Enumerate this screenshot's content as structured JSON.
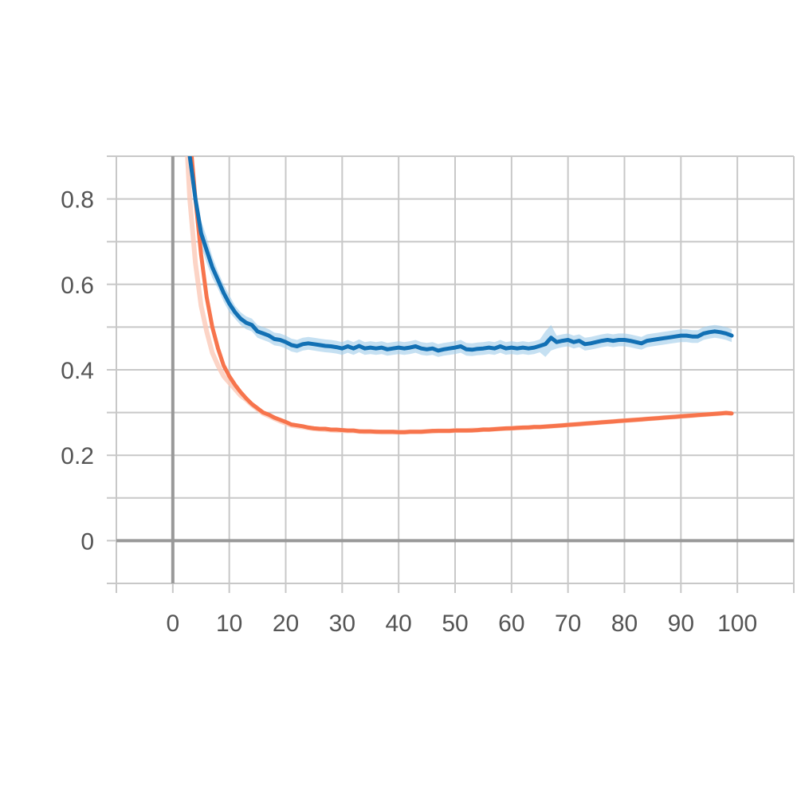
{
  "chart_data": {
    "type": "line",
    "title": "",
    "xlabel": "",
    "ylabel": "",
    "xlim": [
      -10,
      110
    ],
    "ylim": [
      -0.1,
      0.9
    ],
    "x_ticks": [
      0,
      10,
      20,
      30,
      40,
      50,
      60,
      70,
      80,
      90,
      100
    ],
    "x_tick_labels": [
      "0",
      "10",
      "20",
      "30",
      "40",
      "50",
      "60",
      "70",
      "80",
      "90",
      "100"
    ],
    "y_ticks": [
      0,
      0.2,
      0.4,
      0.6,
      0.8
    ],
    "y_tick_labels": [
      "0",
      "0.2",
      "0.4",
      "0.6",
      "0.8"
    ],
    "grid": true,
    "legend": "none",
    "colors": {
      "blue": "#1270B4",
      "blue_light": "#9FCBEA",
      "orange": "#F7744C",
      "orange_light": "#FBC9B8",
      "grid": "#C8C8C8",
      "axis": "#999999"
    },
    "series": [
      {
        "x": [
          2,
          3,
          4,
          5,
          6,
          7,
          8,
          9,
          10,
          11,
          12,
          13,
          14,
          15,
          16,
          17,
          18,
          19,
          20,
          21,
          22,
          23,
          24,
          25,
          26,
          27,
          28,
          29,
          30,
          31,
          32,
          33,
          34,
          35,
          36,
          37,
          38,
          39,
          40,
          41,
          42,
          43,
          44,
          45,
          46,
          47,
          48,
          49,
          50,
          51,
          52,
          53,
          54,
          55,
          56,
          57,
          58,
          59,
          60,
          61,
          62,
          63,
          64,
          65,
          66,
          67,
          68,
          69,
          70,
          71,
          72,
          73,
          74,
          75,
          76,
          77,
          78,
          79,
          80,
          81,
          82,
          83,
          84,
          85,
          86,
          87,
          88,
          89,
          90,
          91,
          92,
          93,
          94,
          95,
          96,
          97,
          98,
          99
        ],
        "y": [
          1.0,
          0.9,
          0.8,
          0.72,
          0.68,
          0.64,
          0.61,
          0.58,
          0.555,
          0.535,
          0.52,
          0.51,
          0.505,
          0.49,
          0.485,
          0.48,
          0.472,
          0.47,
          0.465,
          0.458,
          0.455,
          0.46,
          0.462,
          0.46,
          0.458,
          0.456,
          0.455,
          0.453,
          0.45,
          0.455,
          0.45,
          0.456,
          0.45,
          0.452,
          0.45,
          0.452,
          0.448,
          0.45,
          0.452,
          0.45,
          0.452,
          0.455,
          0.45,
          0.448,
          0.45,
          0.445,
          0.448,
          0.45,
          0.452,
          0.455,
          0.448,
          0.447,
          0.449,
          0.45,
          0.452,
          0.45,
          0.455,
          0.45,
          0.452,
          0.45,
          0.452,
          0.45,
          0.452,
          0.456,
          0.46,
          0.475,
          0.465,
          0.468,
          0.47,
          0.465,
          0.468,
          0.46,
          0.462,
          0.465,
          0.468,
          0.47,
          0.468,
          0.47,
          0.47,
          0.468,
          0.465,
          0.462,
          0.468,
          0.47,
          0.472,
          0.474,
          0.476,
          0.478,
          0.48,
          0.48,
          0.478,
          0.478,
          0.485,
          0.488,
          0.49,
          0.488,
          0.485,
          0.48
        ],
        "band": [
          0.0,
          0.02,
          0.03,
          0.03,
          0.03,
          0.025,
          0.02,
          0.02,
          0.02,
          0.015,
          0.015,
          0.015,
          0.015,
          0.015,
          0.015,
          0.015,
          0.015,
          0.015,
          0.015,
          0.015,
          0.015,
          0.015,
          0.015,
          0.015,
          0.015,
          0.015,
          0.015,
          0.015,
          0.015,
          0.015,
          0.015,
          0.015,
          0.015,
          0.015,
          0.015,
          0.015,
          0.015,
          0.015,
          0.015,
          0.015,
          0.015,
          0.015,
          0.015,
          0.015,
          0.015,
          0.015,
          0.015,
          0.015,
          0.015,
          0.015,
          0.015,
          0.015,
          0.015,
          0.015,
          0.015,
          0.015,
          0.015,
          0.015,
          0.015,
          0.015,
          0.015,
          0.015,
          0.015,
          0.015,
          0.03,
          0.03,
          0.015,
          0.015,
          0.015,
          0.015,
          0.015,
          0.015,
          0.015,
          0.015,
          0.015,
          0.015,
          0.015,
          0.015,
          0.015,
          0.015,
          0.015,
          0.015,
          0.015,
          0.015,
          0.015,
          0.015,
          0.015,
          0.015,
          0.015,
          0.015,
          0.015,
          0.015,
          0.015,
          0.015,
          0.015,
          0.015,
          0.015,
          0.015
        ],
        "color": "#1270B4",
        "band_color": "#9FCBEA"
      },
      {
        "x": [
          2,
          3,
          4,
          5,
          6,
          7,
          8,
          9,
          10,
          11,
          12,
          13,
          14,
          15,
          16,
          17,
          18,
          19,
          20,
          21,
          22,
          23,
          24,
          25,
          26,
          27,
          28,
          29,
          30,
          31,
          32,
          33,
          34,
          35,
          36,
          37,
          38,
          39,
          40,
          41,
          42,
          43,
          44,
          45,
          46,
          47,
          48,
          49,
          50,
          51,
          52,
          53,
          54,
          55,
          56,
          57,
          58,
          59,
          60,
          61,
          62,
          63,
          64,
          65,
          66,
          67,
          68,
          69,
          70,
          71,
          72,
          73,
          74,
          75,
          76,
          77,
          78,
          79,
          80,
          81,
          82,
          83,
          84,
          85,
          86,
          87,
          88,
          89,
          90,
          91,
          92,
          93,
          94,
          95,
          96,
          97,
          98,
          99
        ],
        "y": [
          1.1,
          0.95,
          0.8,
          0.67,
          0.57,
          0.5,
          0.45,
          0.41,
          0.385,
          0.365,
          0.348,
          0.333,
          0.32,
          0.31,
          0.3,
          0.295,
          0.288,
          0.283,
          0.278,
          0.272,
          0.27,
          0.268,
          0.265,
          0.263,
          0.262,
          0.262,
          0.26,
          0.26,
          0.259,
          0.258,
          0.258,
          0.256,
          0.256,
          0.256,
          0.255,
          0.255,
          0.255,
          0.255,
          0.254,
          0.254,
          0.255,
          0.255,
          0.255,
          0.256,
          0.257,
          0.257,
          0.257,
          0.257,
          0.258,
          0.258,
          0.258,
          0.258,
          0.259,
          0.26,
          0.26,
          0.261,
          0.262,
          0.263,
          0.263,
          0.264,
          0.265,
          0.265,
          0.266,
          0.266,
          0.267,
          0.268,
          0.269,
          0.27,
          0.271,
          0.272,
          0.273,
          0.274,
          0.275,
          0.276,
          0.277,
          0.278,
          0.279,
          0.28,
          0.281,
          0.282,
          0.283,
          0.284,
          0.285,
          0.286,
          0.287,
          0.288,
          0.289,
          0.29,
          0.291,
          0.292,
          0.293,
          0.294,
          0.295,
          0.296,
          0.297,
          0.298,
          0.299,
          0.298
        ],
        "raw_y": [
          1.05,
          0.8,
          0.65,
          0.55,
          0.49,
          0.44,
          0.41,
          0.385,
          0.37,
          0.355,
          0.34,
          0.33,
          0.318,
          0.308,
          0.298,
          0.292,
          0.286,
          0.28,
          0.275,
          0.27,
          0.268,
          0.266,
          0.264,
          0.262,
          0.261,
          0.26,
          0.259,
          0.258,
          0.258,
          0.257,
          0.257,
          0.256,
          0.255,
          0.255,
          0.255,
          0.254,
          0.254,
          0.254,
          0.254,
          0.254,
          0.255,
          0.255,
          0.255,
          0.256,
          0.256,
          0.257,
          0.257,
          0.257,
          0.258,
          0.258,
          0.258,
          0.259,
          0.259,
          0.26,
          0.26,
          0.261,
          0.262,
          0.262,
          0.263,
          0.264,
          0.264,
          0.265,
          0.266,
          0.266,
          0.267,
          0.268,
          0.269,
          0.27,
          0.271,
          0.272,
          0.273,
          0.274,
          0.275,
          0.276,
          0.277,
          0.278,
          0.279,
          0.28,
          0.281,
          0.282,
          0.283,
          0.284,
          0.285,
          0.286,
          0.287,
          0.288,
          0.289,
          0.29,
          0.291,
          0.292,
          0.293,
          0.294,
          0.295,
          0.296,
          0.297,
          0.298,
          0.299,
          0.298
        ],
        "color": "#F7744C",
        "raw_color": "#FBC9B8"
      }
    ]
  }
}
